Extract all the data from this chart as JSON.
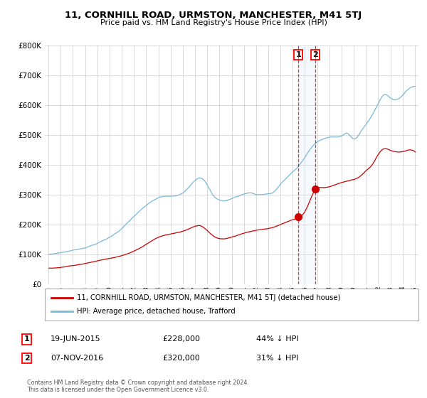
{
  "title": "11, CORNHILL ROAD, URMSTON, MANCHESTER, M41 5TJ",
  "subtitle": "Price paid vs. HM Land Registry's House Price Index (HPI)",
  "legend_line1": "11, CORNHILL ROAD, URMSTON, MANCHESTER, M41 5TJ (detached house)",
  "legend_line2": "HPI: Average price, detached house, Trafford",
  "transaction1_date": "19-JUN-2015",
  "transaction1_price": 228000,
  "transaction1_label": "44% ↓ HPI",
  "transaction2_date": "07-NOV-2016",
  "transaction2_price": 320000,
  "transaction2_label": "31% ↓ HPI",
  "footer": "Contains HM Land Registry data © Crown copyright and database right 2024.\nThis data is licensed under the Open Government Licence v3.0.",
  "hpi_color": "#7ab8d9",
  "price_color": "#cc0000",
  "dot_color": "#cc0000",
  "vline_color": "#cc0000",
  "highlight_color": "#ddeeff",
  "ylim": [
    0,
    800000
  ],
  "yticks": [
    0,
    100000,
    200000,
    300000,
    400000,
    500000,
    600000,
    700000,
    800000
  ],
  "xlim_start": 1994.7,
  "xlim_end": 2025.3,
  "transaction1_x": 2015.46,
  "transaction2_x": 2016.84,
  "hpi_anchors_x": [
    1995.0,
    1996.0,
    1997.0,
    1998.0,
    1999.0,
    2000.0,
    2001.0,
    2002.0,
    2003.0,
    2004.0,
    2005.0,
    2006.0,
    2007.0,
    2007.7,
    2008.5,
    2009.0,
    2009.5,
    2010.0,
    2011.0,
    2011.5,
    2012.0,
    2012.5,
    2013.0,
    2013.5,
    2014.0,
    2014.5,
    2015.0,
    2015.5,
    2016.0,
    2016.5,
    2017.0,
    2017.5,
    2018.0,
    2018.5,
    2019.0,
    2019.5,
    2020.0,
    2020.5,
    2021.0,
    2021.5,
    2022.0,
    2022.5,
    2023.0,
    2023.5,
    2024.0,
    2024.5,
    2025.0
  ],
  "hpi_anchors_y": [
    100000,
    107000,
    115000,
    125000,
    140000,
    160000,
    190000,
    230000,
    265000,
    290000,
    295000,
    305000,
    350000,
    355000,
    300000,
    285000,
    283000,
    290000,
    305000,
    310000,
    305000,
    305000,
    308000,
    315000,
    340000,
    360000,
    380000,
    400000,
    430000,
    460000,
    480000,
    490000,
    495000,
    498000,
    502000,
    510000,
    490000,
    510000,
    540000,
    570000,
    610000,
    640000,
    630000,
    625000,
    640000,
    660000,
    670000
  ],
  "price_anchors_x": [
    1995.0,
    1996.0,
    1997.0,
    1998.0,
    1999.5,
    2001.0,
    2002.5,
    2004.0,
    2005.0,
    2006.5,
    2007.5,
    2008.5,
    2009.2,
    2009.8,
    2011.0,
    2012.0,
    2013.0,
    2014.0,
    2014.8,
    2015.46,
    2016.0,
    2016.84,
    2017.5,
    2018.5,
    2019.0,
    2020.0,
    2020.5,
    2021.0,
    2021.5,
    2022.0,
    2022.5,
    2023.0,
    2023.5,
    2024.0,
    2024.5,
    2025.0
  ],
  "price_anchors_y": [
    55000,
    58000,
    65000,
    72000,
    85000,
    100000,
    125000,
    162000,
    173000,
    190000,
    200000,
    168000,
    158000,
    162000,
    178000,
    188000,
    193000,
    205000,
    218000,
    228000,
    248000,
    320000,
    328000,
    338000,
    345000,
    355000,
    365000,
    385000,
    405000,
    440000,
    460000,
    455000,
    450000,
    450000,
    455000,
    450000
  ]
}
